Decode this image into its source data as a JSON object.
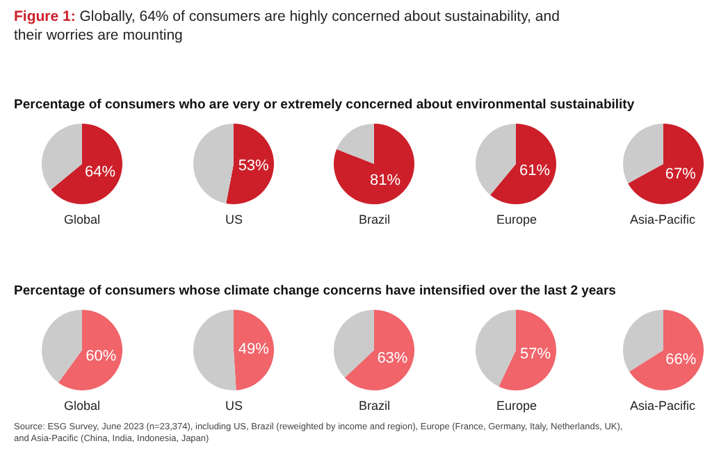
{
  "chart_data": [
    {
      "type": "pie",
      "title": "Global",
      "subtitle": "Percentage of consumers who are very or extremely concerned about environmental sustainability",
      "annotations": [
        "Figure 1: Globally, 64% of consumers are highly concerned about sustainability, and their worries are mounting"
      ],
      "categories": [
        null,
        null
      ],
      "values": [
        64,
        36
      ],
      "colors": [
        "#cc1f2a",
        "#cbcbcb"
      ],
      "value_labels": [
        "64%",
        null
      ]
    },
    {
      "type": "pie",
      "title": "US",
      "categories": [
        null,
        null
      ],
      "values": [
        53,
        47
      ],
      "colors": [
        "#cc1f2a",
        "#cbcbcb"
      ],
      "value_labels": [
        "53%",
        null
      ]
    },
    {
      "type": "pie",
      "title": "Brazil",
      "categories": [
        null,
        null
      ],
      "values": [
        81,
        19
      ],
      "colors": [
        "#cc1f2a",
        "#cbcbcb"
      ],
      "value_labels": [
        "81%",
        null
      ]
    },
    {
      "type": "pie",
      "title": "Europe",
      "categories": [
        null,
        null
      ],
      "values": [
        61,
        39
      ],
      "colors": [
        "#cc1f2a",
        "#cbcbcb"
      ],
      "value_labels": [
        "61%",
        null
      ]
    },
    {
      "type": "pie",
      "title": "Asia-Pacific",
      "categories": [
        null,
        null
      ],
      "values": [
        67,
        33
      ],
      "colors": [
        "#cc1f2a",
        "#cbcbcb"
      ],
      "value_labels": [
        "67%",
        null
      ]
    },
    {
      "type": "pie",
      "title": "Global",
      "subtitle": "Percentage of consumers whose climate change concerns have intensified over the last 2 years",
      "categories": [
        null,
        null
      ],
      "values": [
        60,
        40
      ],
      "colors": [
        "#f0646a",
        "#cbcbcb"
      ],
      "value_labels": [
        "60%",
        null
      ]
    },
    {
      "type": "pie",
      "title": "US",
      "categories": [
        null,
        null
      ],
      "values": [
        49,
        51
      ],
      "colors": [
        "#f0646a",
        "#cbcbcb"
      ],
      "value_labels": [
        "49%",
        null
      ]
    },
    {
      "type": "pie",
      "title": "Brazil",
      "categories": [
        null,
        null
      ],
      "values": [
        63,
        37
      ],
      "colors": [
        "#f0646a",
        "#cbcbcb"
      ],
      "value_labels": [
        "63%",
        null
      ]
    },
    {
      "type": "pie",
      "title": "Europe",
      "categories": [
        null,
        null
      ],
      "values": [
        57,
        43
      ],
      "colors": [
        "#f0646a",
        "#cbcbcb"
      ],
      "value_labels": [
        "57%",
        null
      ]
    },
    {
      "type": "pie",
      "title": "Asia-Pacific",
      "categories": [
        null,
        null
      ],
      "values": [
        66,
        34
      ],
      "colors": [
        "#f0646a",
        "#cbcbcb"
      ],
      "value_labels": [
        "66%",
        null
      ],
      "annotations": [
        "Source: ESG Survey, June 2023 (n=23,374), including US, Brazil (reweighted by income and region), Europe (France, Germany, Italy, Netherlands, UK), and Asia-Pacific (China, India, Indonesia, Japan)"
      ]
    }
  ]
}
